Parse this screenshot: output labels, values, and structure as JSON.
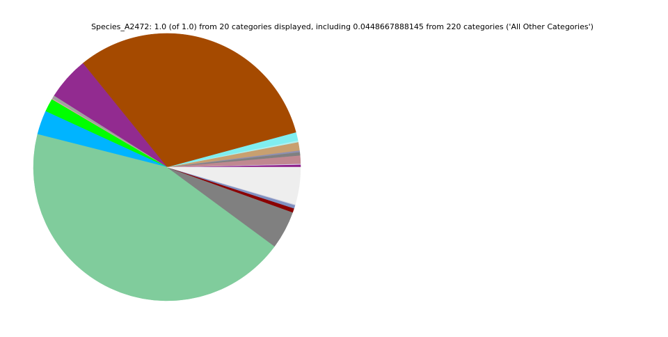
{
  "chart_data": {
    "type": "pie",
    "title": "Species_A2472: 1.0 (of 1.0) from 20 categories displayed, including 0.0448667888145 from 220 categories ('All Other Categories')",
    "categories": [
      null,
      null,
      null,
      null,
      null,
      null,
      null,
      null,
      null,
      null,
      null,
      null,
      null,
      null,
      null,
      null,
      null,
      null,
      null,
      null
    ],
    "values": [
      0.003,
      0.001,
      0.01,
      0.004,
      0.002,
      0.01,
      0.002,
      0.01,
      0.316,
      0.052,
      0.004,
      0.001,
      0.016,
      0.029,
      0.438,
      0.046,
      0.005,
      0.004,
      0.001,
      0.0449
    ],
    "colors": [
      "#8b1a89",
      "#d8c8e8",
      "#c08890",
      "#808080",
      "#9090b0",
      "#c8a070",
      "#b0f0f0",
      "#80eef0",
      "#a54a00",
      "#922b90",
      "#a0a0a0",
      "#e8a0b0",
      "#00ff00",
      "#00b4ff",
      "#80cc9c",
      "#808080",
      "#8b0000",
      "#8090c0",
      "#d0d0e0",
      "#eeeeee"
    ],
    "start_angle": 0,
    "counterclockwise": true
  }
}
